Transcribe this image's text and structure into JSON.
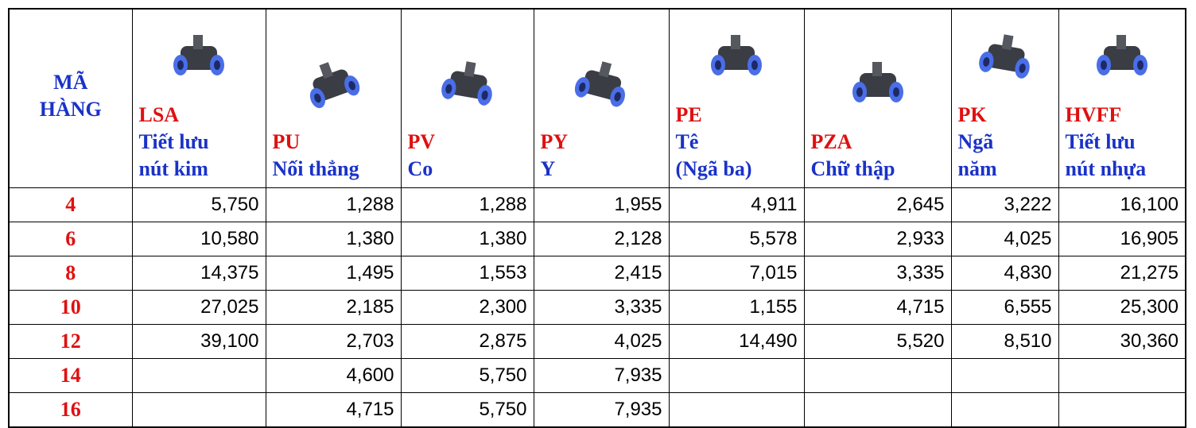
{
  "table": {
    "header": {
      "label": [
        "MÃ",
        "HÀNG"
      ],
      "columns": [
        {
          "code": "LSA",
          "name": [
            "Tiết lưu",
            "nút kim"
          ]
        },
        {
          "code": "PU",
          "name": [
            "Nối thẳng"
          ]
        },
        {
          "code": "PV",
          "name": [
            "Co"
          ]
        },
        {
          "code": "PY",
          "name": [
            "Y"
          ]
        },
        {
          "code": "PE",
          "name": [
            "Tê",
            "(Ngã ba)"
          ]
        },
        {
          "code": "PZA",
          "name": [
            "Chữ thập"
          ]
        },
        {
          "code": "PK",
          "name": [
            "Ngã",
            "năm"
          ]
        },
        {
          "code": "HVFF",
          "name": [
            "Tiết lưu",
            "nút nhựa"
          ]
        }
      ]
    },
    "rows": [
      [
        "4",
        "5,750",
        "1,288",
        "1,288",
        "1,955",
        "4,911",
        "2,645",
        "3,222",
        "16,100"
      ],
      [
        "6",
        "10,580",
        "1,380",
        "1,380",
        "2,128",
        "5,578",
        "2,933",
        "4,025",
        "16,905"
      ],
      [
        "8",
        "14,375",
        "1,495",
        "1,553",
        "2,415",
        "7,015",
        "3,335",
        "4,830",
        "21,275"
      ],
      [
        "10",
        "27,025",
        "2,185",
        "2,300",
        "3,335",
        "1,155",
        "4,715",
        "6,555",
        "25,300"
      ],
      [
        "12",
        "39,100",
        "2,703",
        "2,875",
        "4,025",
        "14,490",
        "5,520",
        "8,510",
        "30,360"
      ],
      [
        "14",
        null,
        "4,600",
        "5,750",
        "7,935",
        null,
        null,
        null,
        null
      ],
      [
        "16",
        null,
        "4,715",
        "5,750",
        "7,935",
        null,
        null,
        null,
        null
      ]
    ]
  }
}
